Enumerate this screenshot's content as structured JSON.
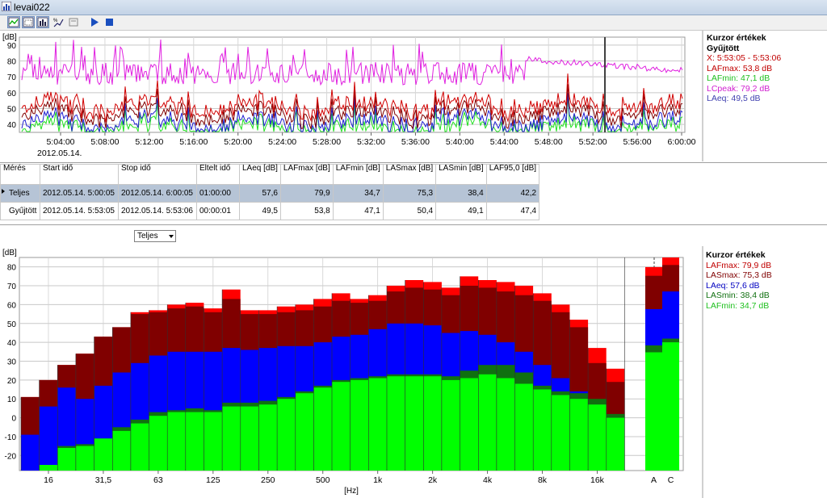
{
  "window": {
    "title": "levai022"
  },
  "toolbar": {
    "icons": [
      "time-chart-icon",
      "spectrum-icon",
      "bar-chart-icon",
      "statistics-icon",
      "report-icon",
      "play-icon",
      "stop-icon"
    ]
  },
  "time_panel": {
    "ylabel": "[dB]",
    "date": "2012.05.14.",
    "legend": {
      "header1": "Kurzor értékek",
      "header2": "Gyűjtött",
      "lines": [
        {
          "text": "X: 5:53:05 - 5:53:06",
          "color": "#c00000"
        },
        {
          "text": "LAFmax: 53,8 dB",
          "color": "#c00000"
        },
        {
          "text": "LAFmin: 47,1 dB",
          "color": "#20c020"
        },
        {
          "text": "LCpeak: 79,2 dB",
          "color": "#d020d0"
        },
        {
          "text": "LAeq: 49,5 dB",
          "color": "#4040b0"
        }
      ]
    }
  },
  "table": {
    "headers": [
      "Mérés",
      "Start idő",
      "Stop idő",
      "Eltelt idő",
      "LAeq [dB]",
      "LAFmax [dB]",
      "LAFmin [dB]",
      "LASmax [dB]",
      "LASmin [dB]",
      "LAF95,0 [dB]"
    ],
    "rows": [
      [
        "Teljes",
        "2012.05.14. 5:00:05",
        "2012.05.14. 6:00:05",
        "01:00:00",
        "57,6",
        "79,9",
        "34,7",
        "75,3",
        "38,4",
        "42,2"
      ],
      [
        "Gyűjtött",
        "2012.05.14. 5:53:05",
        "2012.05.14. 5:53:06",
        "00:00:01",
        "49,5",
        "53,8",
        "47,1",
        "50,4",
        "49,1",
        "47,4"
      ]
    ]
  },
  "dropdown": {
    "value": "Teljes"
  },
  "spectrum_panel": {
    "legend": {
      "header": "Kurzor értékek",
      "lines": [
        {
          "text": "LAFmax: 79,9 dB",
          "color": "#c00000"
        },
        {
          "text": "LASmax: 75,3 dB",
          "color": "#800000"
        },
        {
          "text": "LAeq: 57,6 dB",
          "color": "#0000c0"
        },
        {
          "text": "LASmin: 38,4 dB",
          "color": "#107010"
        },
        {
          "text": "LAFmin: 34,7 dB",
          "color": "#20c020"
        }
      ]
    }
  },
  "chart_data": [
    {
      "type": "line",
      "ylabel": "[dB]",
      "xlabel": "",
      "ylim": [
        35,
        95
      ],
      "yticks": [
        40,
        50,
        60,
        70,
        80,
        90
      ],
      "xticks": [
        "5:04:00",
        "5:08:00",
        "5:12:00",
        "5:16:00",
        "5:20:00",
        "5:24:00",
        "5:28:00",
        "5:32:00",
        "5:36:00",
        "5:40:00",
        "5:44:00",
        "5:48:00",
        "5:52:00",
        "5:56:00",
        "6:00:00"
      ],
      "grid": true,
      "cursor": "5:53:05",
      "colors": {
        "LCpeak": "#e020e0",
        "LAFmax": "#d00000",
        "LASmax": "#800000",
        "LAeq": "#2020d0",
        "LAFmin": "#20e020"
      },
      "series": [
        {
          "name": "LCpeak",
          "approx_range": [
            55,
            95
          ]
        },
        {
          "name": "LAFmax",
          "approx_range": [
            40,
            70
          ]
        },
        {
          "name": "LAFmin",
          "approx_range": [
            35,
            55
          ]
        },
        {
          "name": "LAeq",
          "approx_range": [
            38,
            60
          ]
        }
      ]
    },
    {
      "type": "bar",
      "xlabel": "[Hz]",
      "ylabel": "[dB]",
      "ylim": [
        -28,
        85
      ],
      "yticks": [
        -20,
        -10,
        0,
        10,
        20,
        30,
        40,
        50,
        60,
        70,
        80
      ],
      "categories": [
        "12,5",
        "16",
        "20",
        "25",
        "31,5",
        "40",
        "50",
        "63",
        "80",
        "100",
        "125",
        "160",
        "200",
        "250",
        "315",
        "400",
        "500",
        "630",
        "800",
        "1k",
        "1,25k",
        "1,6k",
        "2k",
        "2,5k",
        "3,15k",
        "4k",
        "5k",
        "6,3k",
        "8k",
        "10k",
        "12,5k",
        "16k",
        "20k"
      ],
      "xtick_labels": [
        "16",
        "31,5",
        "63",
        "125",
        "250",
        "500",
        "1k",
        "2k",
        "4k",
        "8k",
        "16k"
      ],
      "grid": true,
      "series": [
        {
          "name": "LAFmax",
          "color": "#ff0000",
          "values": [
            11,
            20,
            28,
            34,
            43,
            48,
            56,
            57,
            60,
            61,
            58,
            68,
            57,
            57,
            59,
            60,
            63,
            66,
            63,
            65,
            70,
            73,
            72,
            69,
            75,
            73,
            72,
            70,
            66,
            60,
            52,
            37,
            26
          ]
        },
        {
          "name": "LASmax",
          "color": "#800000",
          "values": [
            11,
            20,
            28,
            34,
            43,
            48,
            55,
            56,
            58,
            59,
            56,
            63,
            55,
            55,
            56,
            57,
            59,
            62,
            61,
            62,
            67,
            69,
            68,
            65,
            70,
            69,
            67,
            65,
            62,
            56,
            48,
            29,
            19
          ]
        },
        {
          "name": "LAeq",
          "color": "#0000ff",
          "values": [
            -9,
            6,
            16,
            10,
            17,
            24,
            29,
            33,
            35,
            35,
            35,
            37,
            36,
            37,
            38,
            38,
            40,
            43,
            44,
            47,
            50,
            50,
            49,
            45,
            46,
            44,
            40,
            35,
            28,
            21,
            14,
            8,
            1
          ]
        },
        {
          "name": "LASmin",
          "color": "#107010",
          "values": [
            -28,
            -25,
            -15,
            -14,
            -11,
            -5,
            -1,
            3,
            4,
            5,
            4,
            8,
            8,
            9,
            11,
            14,
            17,
            20,
            21,
            22,
            23,
            23,
            23,
            22,
            25,
            28,
            28,
            24,
            17,
            14,
            13,
            10,
            2
          ]
        },
        {
          "name": "LAFmin",
          "color": "#00ff00",
          "values": [
            -28,
            -25,
            -16,
            -15,
            -11,
            -7,
            -3,
            1,
            3,
            3,
            3,
            6,
            6,
            7,
            10,
            13,
            16,
            19,
            20,
            21,
            22,
            22,
            22,
            20,
            21,
            23,
            21,
            18,
            15,
            12,
            10,
            7,
            0
          ]
        }
      ],
      "overall": {
        "categories": [
          "A",
          "C"
        ],
        "LAFmax": [
          79.9,
          85
        ],
        "LASmax": [
          75.3,
          81
        ],
        "LAeq": [
          57.6,
          67
        ],
        "LASmin": [
          38.4,
          42
        ],
        "LAFmin": [
          34.7,
          40
        ]
      }
    }
  ]
}
